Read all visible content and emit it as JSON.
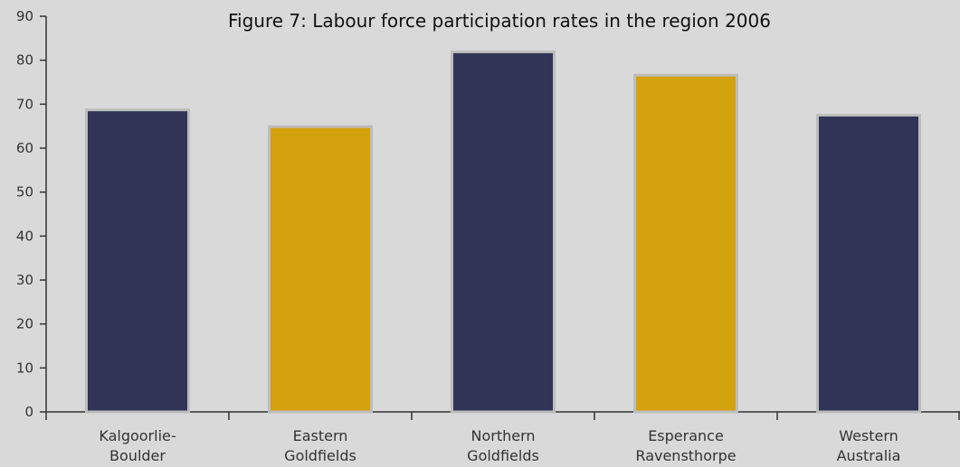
{
  "chart_data": {
    "type": "bar",
    "title": "Figure 7: Labour force participation rates in the region 2006",
    "xlabel": "",
    "ylabel": "",
    "ylim": [
      0,
      90
    ],
    "yticks": [
      0,
      10,
      20,
      30,
      40,
      50,
      60,
      70,
      80,
      90
    ],
    "grid": false,
    "categories": [
      [
        "Kalgoorlie-",
        "Boulder"
      ],
      [
        "Eastern",
        "Goldfields"
      ],
      [
        "Northern",
        "Goldfields"
      ],
      [
        "Esperance",
        "Ravensthorpe"
      ],
      [
        "Western",
        "Australia"
      ]
    ],
    "values": [
      68.7,
      64.9,
      81.9,
      76.6,
      67.5
    ],
    "bar_colors": [
      "#313456",
      "#d4a10f",
      "#313456",
      "#d4a10f",
      "#313456"
    ]
  },
  "colors": {
    "background": "#d9d9d9",
    "axis": "#333333",
    "bar_outline": "#bdbdbd"
  }
}
